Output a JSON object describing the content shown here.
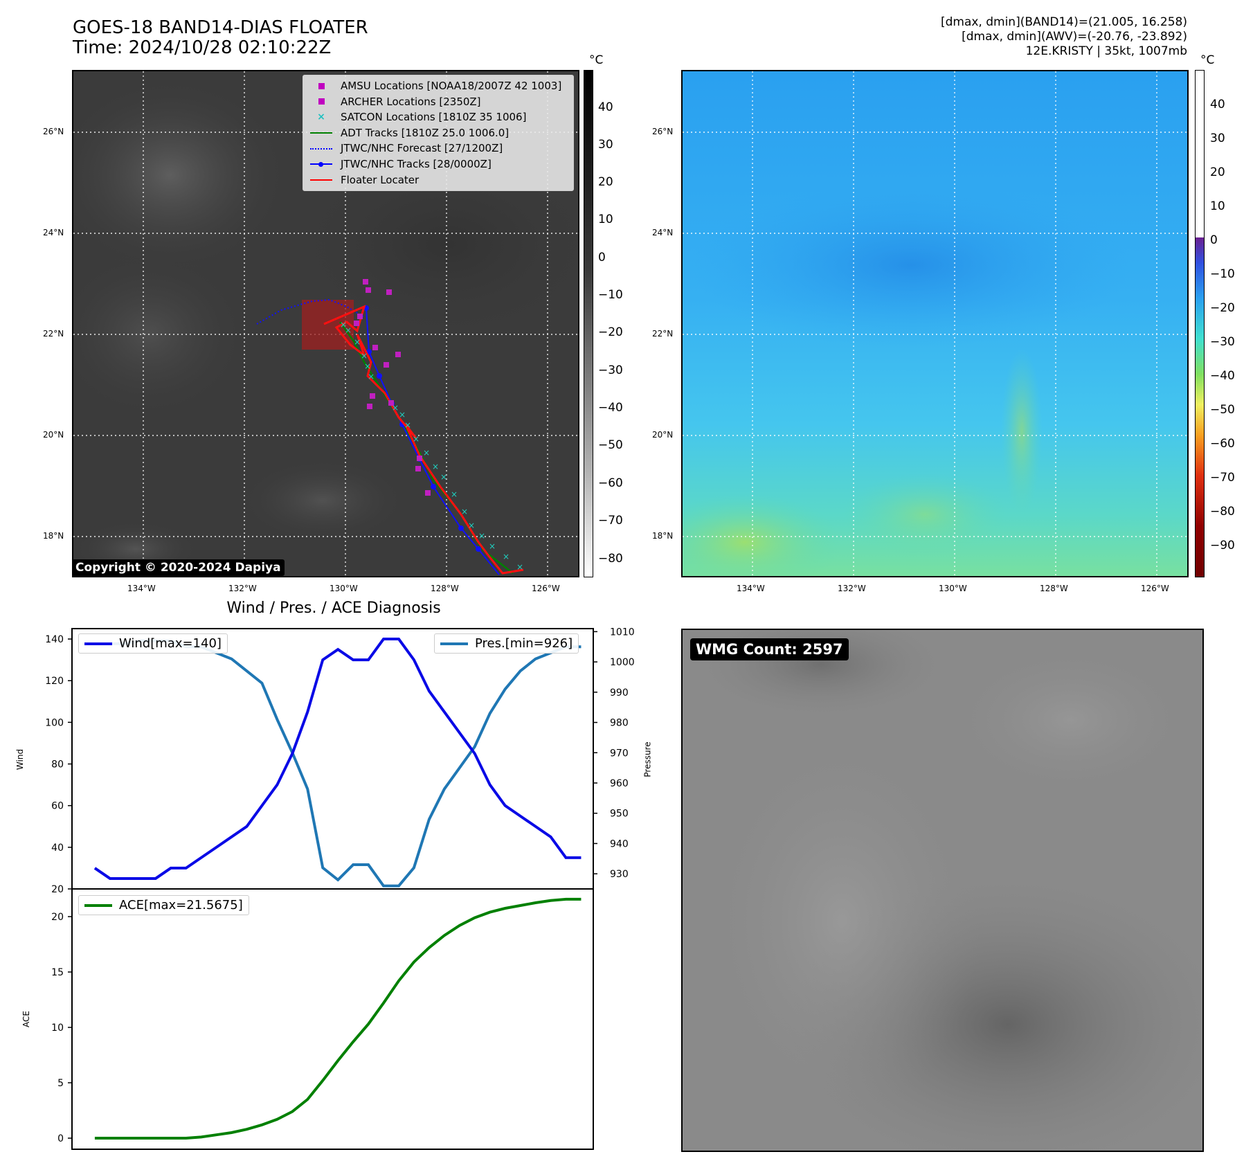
{
  "header": {
    "title_line1": "GOES-18 BAND14-DIAS FLOATER",
    "title_line2": "Time: 2024/10/28 02:10:22Z",
    "stats_line1": "[dmax, dmin](BAND14)=(21.005, 16.258)",
    "stats_line2": "[dmax, dmin](AWV)=(-20.76, -23.892)",
    "stats_line3": "12E.KRISTY | 35kt, 1007mb"
  },
  "map_axes": {
    "lat_labels": [
      "26°N",
      "24°N",
      "22°N",
      "20°N",
      "18°N"
    ],
    "lon_labels": [
      "134°W",
      "132°W",
      "130°W",
      "128°W",
      "126°W"
    ]
  },
  "ir_colorbar": {
    "unit": "°C",
    "ticks": [
      "40",
      "30",
      "20",
      "10",
      "0",
      "−10",
      "−20",
      "−30",
      "−40",
      "−50",
      "−60",
      "−70",
      "−80"
    ]
  },
  "wv_colorbar": {
    "unit": "°C",
    "ticks": [
      "40",
      "30",
      "20",
      "10",
      "0",
      "−10",
      "−20",
      "−30",
      "−40",
      "−50",
      "−60",
      "−70",
      "−80",
      "−90"
    ]
  },
  "legend": {
    "items": [
      {
        "label": "AMSU Locations [NOAA18/2007Z 42 1003]",
        "color": "#c000c0",
        "marker": "square"
      },
      {
        "label": "ARCHER Locations [2350Z]",
        "color": "#c000c0",
        "marker": "square"
      },
      {
        "label": "SATCON Locations [1810Z 35 1006]",
        "color": "#20c0c0",
        "marker": "x"
      },
      {
        "label": "ADT Tracks [1810Z 25.0 1006.0]",
        "color": "#008000",
        "marker": "line"
      },
      {
        "label": "JTWC/NHC Forecast [27/1200Z]",
        "color": "#0000ff",
        "marker": "dotted"
      },
      {
        "label": "JTWC/NHC Tracks [28/0000Z]",
        "color": "#0000ff",
        "marker": "line-dot"
      },
      {
        "label": "Floater Locater",
        "color": "#ff0000",
        "marker": "line"
      }
    ]
  },
  "copyright": "Copyright © 2020-2024 Dapiya",
  "diagnosis_title": "Wind / Pres. / ACE Diagnosis",
  "wmg_label": "WMG Count: 2597",
  "colors": {
    "wind": "#0a0ae6",
    "pressure": "#1f77b4",
    "ace": "#008000"
  },
  "chart_data": [
    {
      "type": "line",
      "title": "Wind / Pres. / ACE Diagnosis",
      "ylabel": "Wind",
      "ylabel_right": "Pressure",
      "ylim": [
        20,
        145
      ],
      "ylim_right": [
        925,
        1011
      ],
      "yticks": [
        20,
        40,
        60,
        80,
        100,
        120,
        140
      ],
      "yticks_right": [
        930,
        940,
        950,
        960,
        970,
        980,
        990,
        1000,
        1010
      ],
      "x": [
        0,
        1,
        2,
        3,
        4,
        5,
        6,
        7,
        8,
        9,
        10,
        11,
        12,
        13,
        14,
        15,
        16,
        17,
        18,
        19,
        20,
        21,
        22,
        23,
        24,
        25,
        26,
        27,
        28,
        29,
        30,
        31,
        32
      ],
      "series": [
        {
          "name": "Wind[max=140]",
          "axis": "left",
          "values": [
            30,
            25,
            25,
            25,
            25,
            30,
            30,
            35,
            40,
            45,
            50,
            60,
            70,
            85,
            105,
            130,
            135,
            130,
            130,
            140,
            140,
            130,
            115,
            105,
            95,
            85,
            70,
            60,
            55,
            50,
            45,
            35,
            35
          ]
        },
        {
          "name": "Pres.[min=926]",
          "axis": "right",
          "values": [
            1006,
            1006,
            1006,
            1007,
            1007,
            1007,
            1005,
            1005,
            1003,
            1001,
            997,
            993,
            981,
            970,
            958,
            932,
            928,
            933,
            933,
            926,
            926,
            932,
            948,
            958,
            965,
            972,
            983,
            991,
            997,
            1001,
            1003,
            1005,
            1005
          ]
        }
      ]
    },
    {
      "type": "line",
      "ylabel": "ACE",
      "ylim": [
        -1,
        22.5
      ],
      "yticks": [
        0,
        5,
        10,
        15,
        20
      ],
      "x": [
        0,
        1,
        2,
        3,
        4,
        5,
        6,
        7,
        8,
        9,
        10,
        11,
        12,
        13,
        14,
        15,
        16,
        17,
        18,
        19,
        20,
        21,
        22,
        23,
        24,
        25,
        26,
        27,
        28,
        29,
        30,
        31,
        32
      ],
      "series": [
        {
          "name": "ACE[max=21.5675]",
          "values": [
            0,
            0,
            0,
            0,
            0,
            0,
            0,
            0.1,
            0.3,
            0.5,
            0.8,
            1.2,
            1.7,
            2.4,
            3.5,
            5.2,
            7.0,
            8.7,
            10.3,
            12.2,
            14.2,
            15.9,
            17.2,
            18.3,
            19.2,
            19.9,
            20.4,
            20.75,
            21.0,
            21.25,
            21.45,
            21.5675,
            21.5675
          ]
        }
      ]
    }
  ]
}
